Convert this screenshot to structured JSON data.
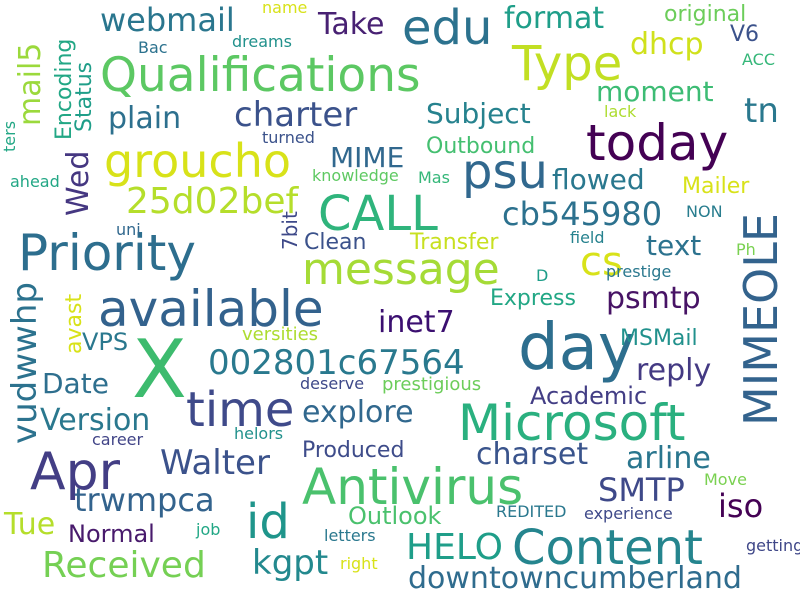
{
  "words": [
    {
      "text": "X",
      "color": "#3dbb6e"
    },
    {
      "text": "day",
      "color": "#2d6e8e"
    },
    {
      "text": "Antivirus",
      "color": "#4ac16d"
    },
    {
      "text": "Microsoft",
      "color": "#2ab07f"
    },
    {
      "text": "Qualifications",
      "color": "#5cc863"
    },
    {
      "text": "Priority",
      "color": "#2d6e8e"
    },
    {
      "text": "available",
      "color": "#33628d"
    },
    {
      "text": "CALL",
      "color": "#2fb47c"
    },
    {
      "text": "message",
      "color": "#a5db36"
    },
    {
      "text": "Content",
      "color": "#25858e"
    },
    {
      "text": "time",
      "color": "#3f4a8a"
    },
    {
      "text": "groucho",
      "color": "#d8e219"
    },
    {
      "text": "today",
      "color": "#440154"
    },
    {
      "text": "Apr",
      "color": "#433e85"
    },
    {
      "text": "MIMEOLE",
      "color": "#33638d"
    },
    {
      "text": "edu",
      "color": "#2c728e"
    },
    {
      "text": "psu",
      "color": "#31688e"
    },
    {
      "text": "Type",
      "color": "#c2df23"
    },
    {
      "text": "id",
      "color": "#1f958b"
    },
    {
      "text": "cs",
      "color": "#d8e219"
    },
    {
      "text": "webmail",
      "color": "#2a768e"
    },
    {
      "text": "charter",
      "color": "#3b528b"
    },
    {
      "text": "002801c67564",
      "color": "#29798e"
    },
    {
      "text": "25d02bef",
      "color": "#b5de2b"
    },
    {
      "text": "cb545980",
      "color": "#2c718e"
    },
    {
      "text": "Walter",
      "color": "#3b528b"
    },
    {
      "text": "Received",
      "color": "#75d054"
    },
    {
      "text": "kgpt",
      "color": "#23898e"
    },
    {
      "text": "HELO",
      "color": "#1f9e89"
    },
    {
      "text": "downtowncumberland",
      "color": "#2f6c8e"
    },
    {
      "text": "SMTP",
      "color": "#3e4989"
    },
    {
      "text": "trwmpca",
      "color": "#33638d"
    },
    {
      "text": "explore",
      "color": "#31688e"
    },
    {
      "text": "Version",
      "color": "#2a788e"
    },
    {
      "text": "Take",
      "color": "#482173"
    },
    {
      "text": "format",
      "color": "#1f9e89"
    },
    {
      "text": "dhcp",
      "color": "#d0e11c"
    },
    {
      "text": "tn",
      "color": "#2a788e"
    },
    {
      "text": "Subject",
      "color": "#26828e"
    },
    {
      "text": "moment",
      "color": "#3dbc74"
    },
    {
      "text": "plain",
      "color": "#2d708e"
    },
    {
      "text": "flowed",
      "color": "#2a788e"
    },
    {
      "text": "text",
      "color": "#2c728e"
    },
    {
      "text": "psmtp",
      "color": "#471365"
    },
    {
      "text": "inet7",
      "color": "#3b0f70"
    },
    {
      "text": "reply",
      "color": "#443a83"
    },
    {
      "text": "Academic",
      "color": "#433e85"
    },
    {
      "text": "charset",
      "color": "#3a548c"
    },
    {
      "text": "arline",
      "color": "#2a768e"
    },
    {
      "text": "iso",
      "color": "#440154"
    },
    {
      "text": "Outlook",
      "color": "#4ac16d"
    },
    {
      "text": "Tue",
      "color": "#b5de2b"
    },
    {
      "text": "Normal",
      "color": "#481a6c"
    },
    {
      "text": "Date",
      "color": "#2e6f8e"
    },
    {
      "text": "VPS",
      "color": "#2a788e"
    },
    {
      "text": "MIME",
      "color": "#31688e"
    },
    {
      "text": "Clean",
      "color": "#3b528b"
    },
    {
      "text": "Transfer",
      "color": "#c8e020"
    },
    {
      "text": "Express",
      "color": "#22a785"
    },
    {
      "text": "Produced",
      "color": "#3e4c8a"
    },
    {
      "text": "Mailer",
      "color": "#d8e219"
    },
    {
      "text": "Outbound",
      "color": "#44bf70"
    },
    {
      "text": "MSMail",
      "color": "#21918c"
    },
    {
      "text": "original",
      "color": "#6ccd5a"
    },
    {
      "text": "V6",
      "color": "#3b528b"
    },
    {
      "text": "REDITED",
      "color": "#2a788e"
    },
    {
      "text": "experience",
      "color": "#3e4989"
    },
    {
      "text": "versities",
      "color": "#addc30"
    },
    {
      "text": "prestigious",
      "color": "#6ccd5a"
    },
    {
      "text": "knowledge",
      "color": "#5ec962"
    },
    {
      "text": "field",
      "color": "#26828e"
    },
    {
      "text": "prestige",
      "color": "#2a788e"
    },
    {
      "text": "deserve",
      "color": "#3e4989"
    },
    {
      "text": "career",
      "color": "#414487"
    },
    {
      "text": "helors",
      "color": "#21918c"
    },
    {
      "text": "Move",
      "color": "#7ad151"
    },
    {
      "text": "getting",
      "color": "#3f4788"
    },
    {
      "text": "letters",
      "color": "#2a788e"
    },
    {
      "text": "right",
      "color": "#d8e219"
    },
    {
      "text": "job",
      "color": "#22a785"
    },
    {
      "text": "uni",
      "color": "#31688e"
    },
    {
      "text": "Ph",
      "color": "#7ad151"
    },
    {
      "text": "NON",
      "color": "#287d8e"
    },
    {
      "text": "ACC",
      "color": "#35b779"
    },
    {
      "text": "lack",
      "color": "#addc30"
    },
    {
      "text": "Bac",
      "color": "#2c728e"
    },
    {
      "text": "dreams",
      "color": "#21918c"
    },
    {
      "text": "name",
      "color": "#d8e219"
    },
    {
      "text": "turned",
      "color": "#3b528b"
    },
    {
      "text": "Mas",
      "color": "#35b779"
    },
    {
      "text": "ahead",
      "color": "#22a785"
    },
    {
      "text": "D",
      "color": "#1f9e89"
    },
    {
      "text": "mail5",
      "color": "#9bd93c"
    },
    {
      "text": "Encoding",
      "color": "#22a785"
    },
    {
      "text": "Status",
      "color": "#1f9e89"
    },
    {
      "text": "ters",
      "color": "#22a785"
    },
    {
      "text": "Wed",
      "color": "#453781"
    },
    {
      "text": "7bit",
      "color": "#3e4989"
    },
    {
      "text": "vudwwhp",
      "color": "#2c728e"
    },
    {
      "text": "avast",
      "color": "#d8e219"
    },
    {
      "text": "MIMEOLE",
      "color": "#33638d"
    }
  ]
}
